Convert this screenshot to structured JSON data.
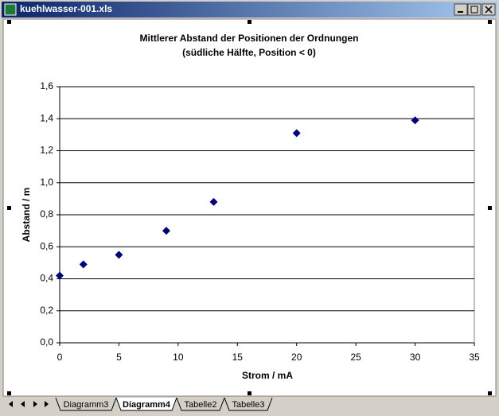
{
  "window": {
    "title": "kuehlwasser-001.xls",
    "tabs": [
      "Diagramm3",
      "Diagramm4",
      "Tabelle2",
      "Tabelle3"
    ]
  },
  "chart_data": {
    "type": "scatter",
    "title": "Mittlerer Abstand der Positionen der Ordnungen",
    "subtitle": "(südliche Hälfte, Position < 0)",
    "x_label": "Strom / mA",
    "y_label": "Abstand / m",
    "x": [
      0,
      2,
      5,
      9,
      13,
      20,
      30
    ],
    "values": [
      0.42,
      0.49,
      0.55,
      0.7,
      0.88,
      1.31,
      1.39
    ],
    "color": "#000080",
    "xlim": [
      0,
      35
    ],
    "xticks": [
      0,
      5,
      10,
      15,
      20,
      25,
      30,
      35
    ],
    "ylim": [
      0,
      1.6
    ],
    "yticks": [
      {
        "value": 0,
        "label": "0,0"
      },
      {
        "value": 0.2,
        "label": "0,2"
      },
      {
        "value": 0.4,
        "label": "0,4"
      },
      {
        "value": 0.6,
        "label": "0,6"
      },
      {
        "value": 0.8,
        "label": "0,8"
      },
      {
        "value": 1.0,
        "label": "1,0"
      },
      {
        "value": 1.2,
        "label": "1,2"
      },
      {
        "value": 1.4,
        "label": "1,4"
      },
      {
        "value": 1.6,
        "label": "1,6"
      }
    ],
    "grid": true
  }
}
